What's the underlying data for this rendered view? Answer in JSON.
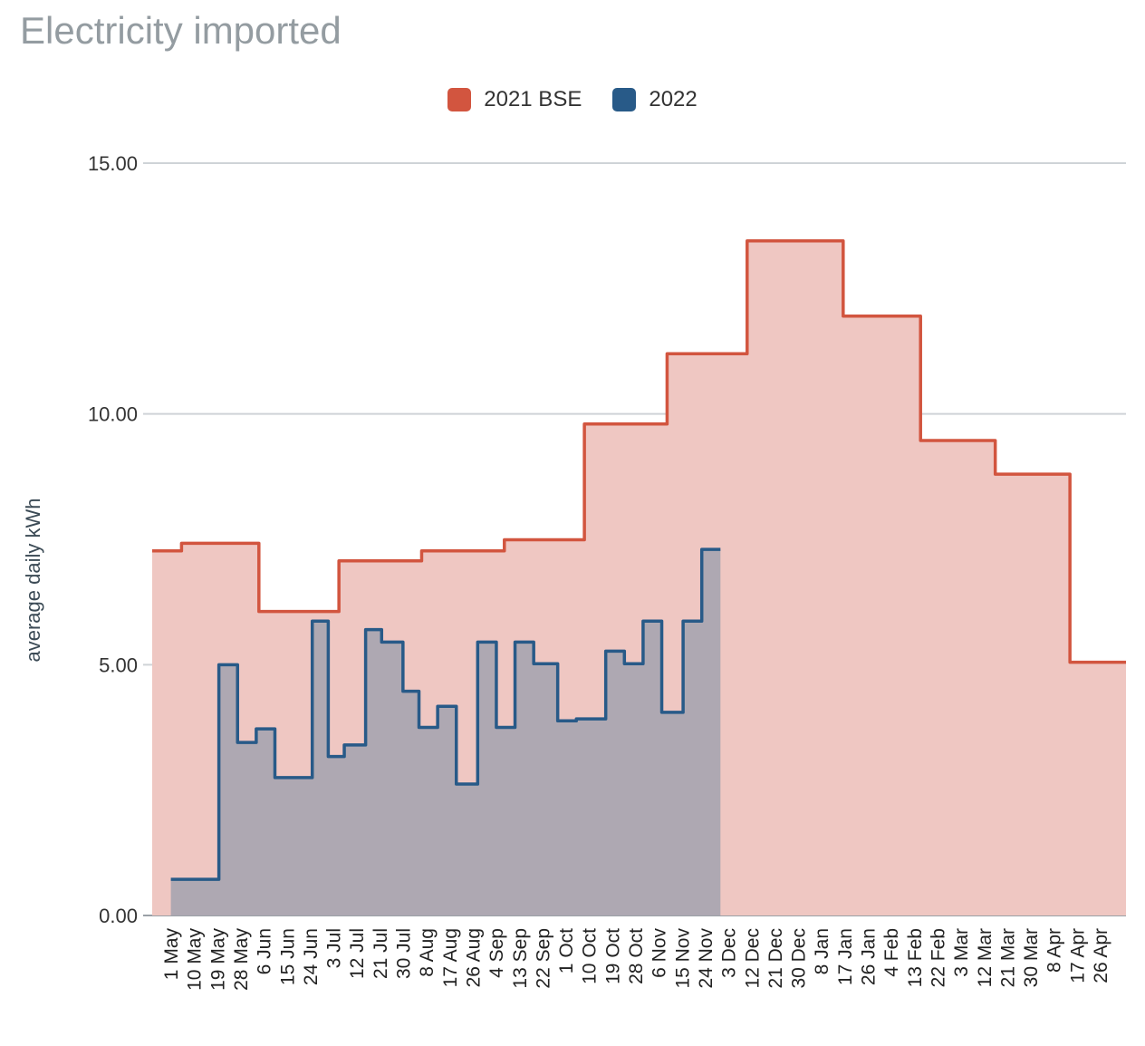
{
  "chart_data": {
    "type": "area",
    "title": "Electricity imported",
    "xlabel": "",
    "ylabel": "average daily kWh",
    "ylim": [
      0,
      15
    ],
    "yticks": [
      "0.00",
      "5.00",
      "10.00",
      "15.00"
    ],
    "grid": true,
    "legend": "top-center",
    "x_tick_labels": [
      "1 May",
      "10 May",
      "19 May",
      "28 May",
      "6 Jun",
      "15 Jun",
      "24 Jun",
      "3 Jul",
      "12 Jul",
      "21 Jul",
      "30 Jul",
      "8 Aug",
      "17 Aug",
      "26 Aug",
      "4 Sep",
      "13 Sep",
      "22 Sep",
      "1 Oct",
      "10 Oct",
      "19 Oct",
      "28 Oct",
      "6 Nov",
      "15 Nov",
      "24 Nov",
      "3 Dec",
      "12 Dec",
      "21 Dec",
      "30 Dec",
      "8 Jan",
      "17 Jan",
      "26 Jan",
      "4 Feb",
      "13 Feb",
      "22 Feb",
      "3 Mar",
      "12 Mar",
      "21 Mar",
      "30 Mar",
      "8 Apr",
      "17 Apr",
      "26 Apr"
    ],
    "x_range": [
      "2022-05-01",
      "2023-05-01"
    ],
    "series": [
      {
        "name": "2021 BSE",
        "color": "#d2553f",
        "fill": "#efc7c2",
        "step_points": [
          {
            "x": "2022-05-01",
            "y": 7.27
          },
          {
            "x": "2022-05-12",
            "y": 7.42
          },
          {
            "x": "2022-06-10",
            "y": 6.06
          },
          {
            "x": "2022-07-10",
            "y": 7.07
          },
          {
            "x": "2022-08-10",
            "y": 7.27
          },
          {
            "x": "2022-09-10",
            "y": 7.49
          },
          {
            "x": "2022-10-10",
            "y": 9.8
          },
          {
            "x": "2022-11-10",
            "y": 11.2
          },
          {
            "x": "2022-12-10",
            "y": 13.45
          },
          {
            "x": "2023-01-15",
            "y": 11.95
          },
          {
            "x": "2023-02-13",
            "y": 9.47
          },
          {
            "x": "2023-03-13",
            "y": 8.8
          },
          {
            "x": "2023-04-10",
            "y": 5.05
          }
        ],
        "end_x": "2023-05-01"
      },
      {
        "name": "2022",
        "color": "#285a88",
        "fill": "#aaa7b1",
        "step_points": [
          {
            "x": "2022-05-08",
            "y": 0.72
          },
          {
            "x": "2022-05-26",
            "y": 5.0
          },
          {
            "x": "2022-06-02",
            "y": 3.45
          },
          {
            "x": "2022-06-09",
            "y": 3.72
          },
          {
            "x": "2022-06-16",
            "y": 2.75
          },
          {
            "x": "2022-06-30",
            "y": 5.87
          },
          {
            "x": "2022-07-06",
            "y": 3.17
          },
          {
            "x": "2022-07-12",
            "y": 3.4
          },
          {
            "x": "2022-07-20",
            "y": 5.7
          },
          {
            "x": "2022-07-26",
            "y": 5.45
          },
          {
            "x": "2022-08-03",
            "y": 4.47
          },
          {
            "x": "2022-08-09",
            "y": 3.75
          },
          {
            "x": "2022-08-16",
            "y": 4.17
          },
          {
            "x": "2022-08-23",
            "y": 2.62
          },
          {
            "x": "2022-08-31",
            "y": 5.45
          },
          {
            "x": "2022-09-07",
            "y": 3.75
          },
          {
            "x": "2022-09-14",
            "y": 5.45
          },
          {
            "x": "2022-09-21",
            "y": 5.02
          },
          {
            "x": "2022-09-30",
            "y": 3.88
          },
          {
            "x": "2022-10-07",
            "y": 3.92
          },
          {
            "x": "2022-10-18",
            "y": 5.27
          },
          {
            "x": "2022-10-25",
            "y": 5.02
          },
          {
            "x": "2022-11-01",
            "y": 5.87
          },
          {
            "x": "2022-11-08",
            "y": 4.05
          },
          {
            "x": "2022-11-16",
            "y": 5.87
          },
          {
            "x": "2022-11-23",
            "y": 7.3
          }
        ],
        "end_x": "2022-11-30"
      }
    ]
  }
}
